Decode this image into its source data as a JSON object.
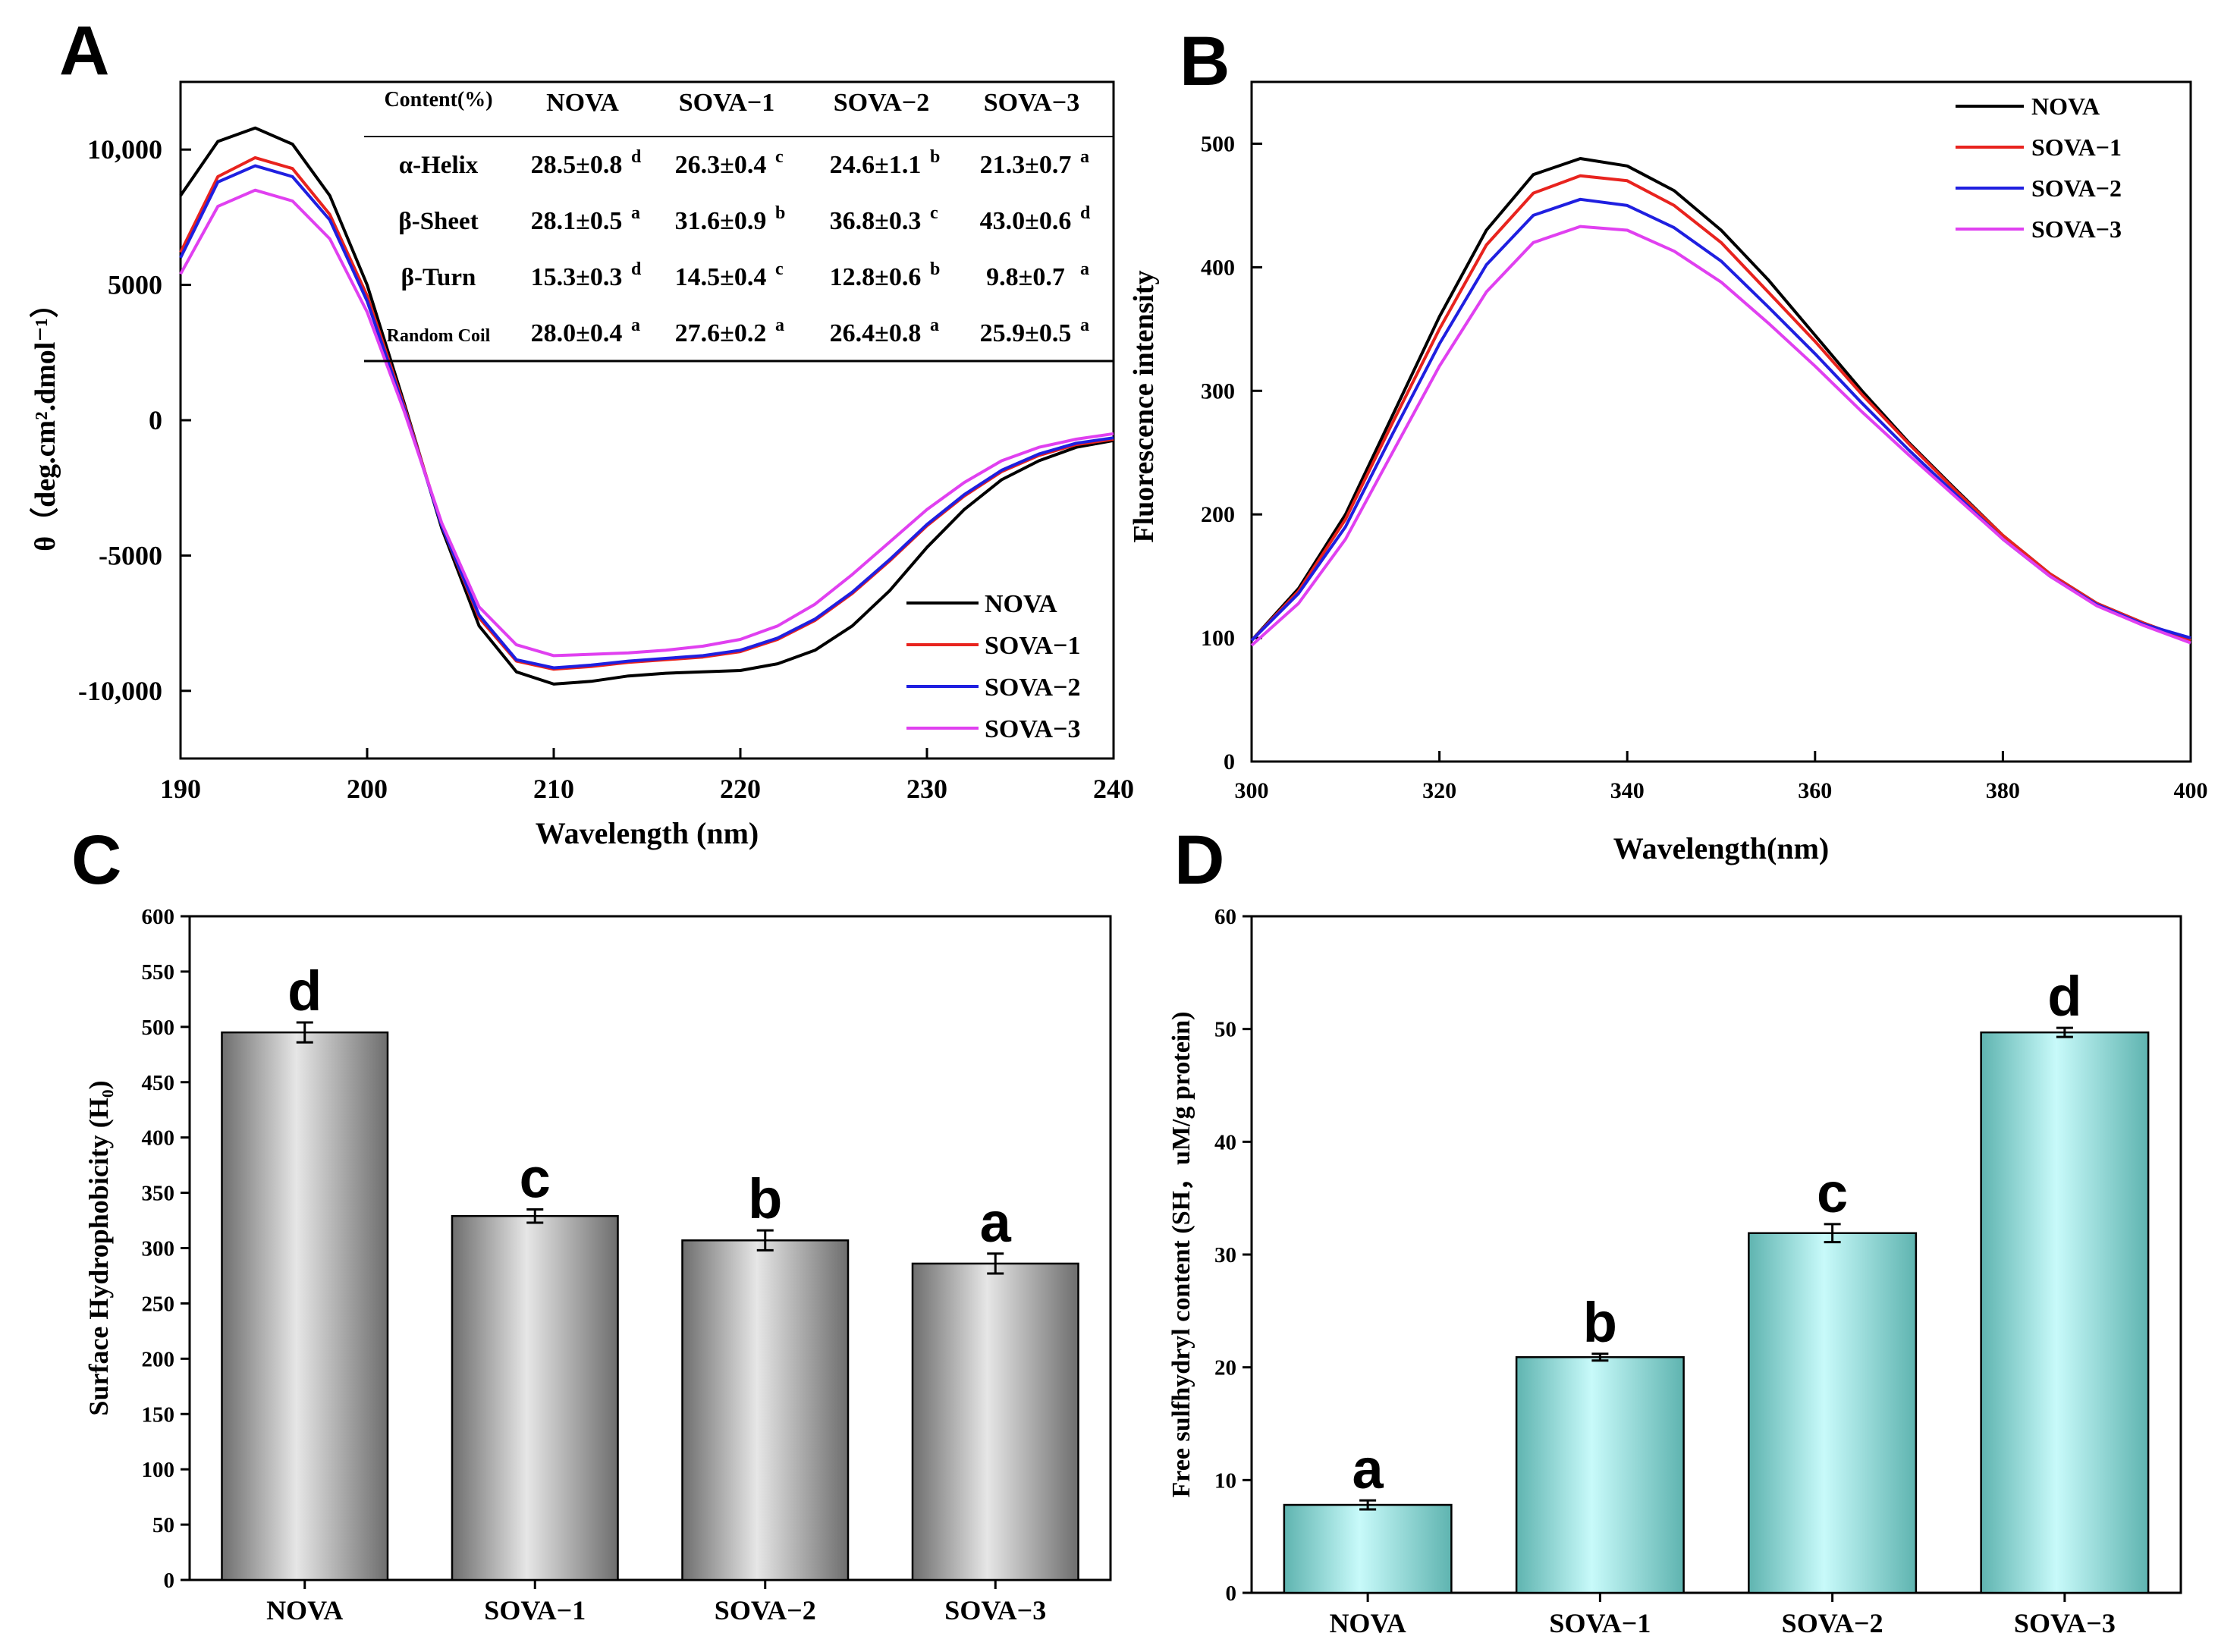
{
  "colors": {
    "NOVA": "#000000",
    "SOVA-1": "#e8231e",
    "SOVA-2": "#1f1fe0",
    "SOVA-3": "#e040f0",
    "barC_light": "#e6e6e6",
    "barC_dark": "#6e6e6e",
    "barD_light": "#c8fafa",
    "barD_dark": "#5fb4b0"
  },
  "chart_data": [
    {
      "panel": "A",
      "type": "line",
      "title": "A",
      "xlabel": "Wavelength (nm)",
      "ylabel": "θ（deg.cm².dmol⁻¹）",
      "xlim": [
        190,
        240
      ],
      "ylim": [
        -12500,
        12500
      ],
      "xticks": [
        190,
        200,
        210,
        220,
        230,
        240
      ],
      "yticks": [
        -10000,
        -5000,
        0,
        5000,
        10000
      ],
      "ytick_labels": [
        "-10,000",
        "-5000",
        "0",
        "5000",
        "10,000"
      ],
      "legend_position": "bottom-right",
      "series": [
        {
          "name": "NOVA",
          "x": [
            190,
            192,
            194,
            196,
            198,
            200,
            202,
            204,
            206,
            208,
            210,
            212,
            214,
            216,
            218,
            220,
            222,
            224,
            226,
            228,
            230,
            232,
            234,
            236,
            238,
            240
          ],
          "y": [
            8300,
            10300,
            10800,
            10200,
            8300,
            5000,
            600,
            -4000,
            -7600,
            -9300,
            -9750,
            -9650,
            -9450,
            -9350,
            -9300,
            -9250,
            -9000,
            -8500,
            -7600,
            -6300,
            -4700,
            -3300,
            -2200,
            -1500,
            -1000,
            -750
          ]
        },
        {
          "name": "SOVA-1",
          "x": [
            190,
            192,
            194,
            196,
            198,
            200,
            202,
            204,
            206,
            208,
            210,
            212,
            214,
            216,
            218,
            220,
            222,
            224,
            226,
            228,
            230,
            232,
            234,
            236,
            238,
            240
          ],
          "y": [
            6200,
            9000,
            9700,
            9300,
            7600,
            4600,
            500,
            -3900,
            -7300,
            -8900,
            -9200,
            -9100,
            -8950,
            -8850,
            -8750,
            -8550,
            -8100,
            -7400,
            -6400,
            -5200,
            -3900,
            -2800,
            -1900,
            -1300,
            -900,
            -700
          ]
        },
        {
          "name": "SOVA-2",
          "x": [
            190,
            192,
            194,
            196,
            198,
            200,
            202,
            204,
            206,
            208,
            210,
            212,
            214,
            216,
            218,
            220,
            222,
            224,
            226,
            228,
            230,
            232,
            234,
            236,
            238,
            240
          ],
          "y": [
            6000,
            8800,
            9400,
            9000,
            7400,
            4400,
            400,
            -3900,
            -7200,
            -8850,
            -9150,
            -9050,
            -8900,
            -8800,
            -8700,
            -8500,
            -8050,
            -7350,
            -6350,
            -5150,
            -3850,
            -2750,
            -1850,
            -1250,
            -850,
            -650
          ]
        },
        {
          "name": "SOVA-3",
          "x": [
            190,
            192,
            194,
            196,
            198,
            200,
            202,
            204,
            206,
            208,
            210,
            212,
            214,
            216,
            218,
            220,
            222,
            224,
            226,
            228,
            230,
            232,
            234,
            236,
            238,
            240
          ],
          "y": [
            5400,
            7900,
            8500,
            8100,
            6700,
            4000,
            300,
            -3800,
            -6900,
            -8300,
            -8700,
            -8650,
            -8600,
            -8500,
            -8350,
            -8100,
            -7600,
            -6800,
            -5700,
            -4500,
            -3300,
            -2300,
            -1500,
            -1000,
            -700,
            -500
          ]
        }
      ],
      "table": {
        "header": [
          "Content(%)",
          "NOVA",
          "SOVA−1",
          "SOVA−2",
          "SOVA−3"
        ],
        "rows": [
          {
            "label": "α-Helix",
            "cells": [
              {
                "v": "28.5±0.8",
                "s": "d"
              },
              {
                "v": "26.3±0.4",
                "s": "c"
              },
              {
                "v": "24.6±1.1",
                "s": "b"
              },
              {
                "v": "21.3±0.7",
                "s": "a"
              }
            ]
          },
          {
            "label": "β-Sheet",
            "cells": [
              {
                "v": "28.1±0.5",
                "s": "a"
              },
              {
                "v": "31.6±0.9",
                "s": "b"
              },
              {
                "v": "36.8±0.3",
                "s": "c"
              },
              {
                "v": "43.0±0.6",
                "s": "d"
              }
            ]
          },
          {
            "label": "β-Turn",
            "cells": [
              {
                "v": "15.3±0.3",
                "s": "d"
              },
              {
                "v": "14.5±0.4",
                "s": "c"
              },
              {
                "v": "12.8±0.6",
                "s": "b"
              },
              {
                "v": "9.8±0.7",
                "s": "a"
              }
            ]
          },
          {
            "label": "Random Coil",
            "cells": [
              {
                "v": "28.0±0.4",
                "s": "a"
              },
              {
                "v": "27.6±0.2",
                "s": "a"
              },
              {
                "v": "26.4±0.8",
                "s": "a"
              },
              {
                "v": "25.9±0.5",
                "s": "a"
              }
            ]
          }
        ]
      }
    },
    {
      "panel": "B",
      "type": "line",
      "title": "B",
      "xlabel": "Wavelength(nm)",
      "ylabel": "Fluorescence intensity",
      "xlim": [
        300,
        400
      ],
      "ylim": [
        0,
        550
      ],
      "xticks": [
        300,
        320,
        340,
        360,
        380,
        400
      ],
      "yticks": [
        0,
        100,
        200,
        300,
        400,
        500
      ],
      "legend_position": "top-right",
      "series": [
        {
          "name": "NOVA",
          "x": [
            300,
            305,
            310,
            315,
            320,
            325,
            330,
            335,
            340,
            345,
            350,
            355,
            360,
            365,
            370,
            375,
            380,
            385,
            390,
            395,
            400
          ],
          "y": [
            98,
            140,
            200,
            280,
            360,
            430,
            475,
            488,
            482,
            462,
            430,
            390,
            345,
            300,
            258,
            220,
            183,
            152,
            128,
            112,
            98
          ]
        },
        {
          "name": "SOVA-1",
          "x": [
            300,
            305,
            310,
            315,
            320,
            325,
            330,
            335,
            340,
            345,
            350,
            355,
            360,
            365,
            370,
            375,
            380,
            385,
            390,
            395,
            400
          ],
          "y": [
            98,
            138,
            196,
            274,
            350,
            418,
            460,
            474,
            470,
            450,
            420,
            380,
            340,
            297,
            257,
            219,
            183,
            152,
            128,
            112,
            98
          ]
        },
        {
          "name": "SOVA-2",
          "x": [
            300,
            305,
            310,
            315,
            320,
            325,
            330,
            335,
            340,
            345,
            350,
            355,
            360,
            365,
            370,
            375,
            380,
            385,
            390,
            395,
            400
          ],
          "y": [
            98,
            136,
            190,
            265,
            338,
            402,
            442,
            455,
            450,
            432,
            405,
            368,
            330,
            290,
            252,
            216,
            180,
            150,
            127,
            111,
            100
          ]
        },
        {
          "name": "SOVA-3",
          "x": [
            300,
            305,
            310,
            315,
            320,
            325,
            330,
            335,
            340,
            345,
            350,
            355,
            360,
            365,
            370,
            375,
            380,
            385,
            390,
            395,
            400
          ],
          "y": [
            94,
            128,
            180,
            250,
            320,
            380,
            420,
            433,
            430,
            413,
            388,
            355,
            320,
            283,
            248,
            214,
            180,
            150,
            126,
            110,
            96
          ]
        }
      ]
    },
    {
      "panel": "C",
      "type": "bar",
      "title": "C",
      "xlabel": "",
      "ylabel": "Surface Hydrophobicity (H₀)",
      "categories": [
        "NOVA",
        "SOVA−1",
        "SOVA−2",
        "SOVA−3"
      ],
      "values": [
        495,
        329,
        307,
        286
      ],
      "errors": [
        9,
        6,
        9,
        9
      ],
      "letters": [
        "d",
        "c",
        "b",
        "a"
      ],
      "ylim": [
        0,
        600
      ],
      "yticks": [
        0,
        50,
        100,
        150,
        200,
        250,
        300,
        350,
        400,
        450,
        500,
        550,
        600
      ]
    },
    {
      "panel": "D",
      "type": "bar",
      "title": "D",
      "xlabel": "",
      "ylabel": "Free sulfhydryl content (SH，uM/g protein)",
      "categories": [
        "NOVA",
        "SOVA−1",
        "SOVA−2",
        "SOVA−3"
      ],
      "values": [
        7.8,
        20.9,
        31.9,
        49.7
      ],
      "errors": [
        0.4,
        0.3,
        0.8,
        0.4
      ],
      "letters": [
        "a",
        "b",
        "c",
        "d"
      ],
      "ylim": [
        0,
        60
      ],
      "yticks": [
        0,
        10,
        20,
        30,
        40,
        50,
        60
      ]
    }
  ]
}
